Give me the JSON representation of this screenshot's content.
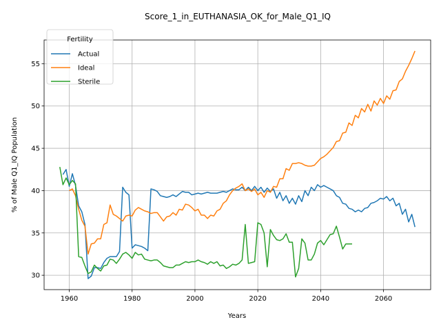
{
  "chart_data": {
    "type": "line",
    "title": "Score_1_in_EUTHANASIA_OK_for_Male_Q1_IQ",
    "xlabel": "Years",
    "ylabel": "% of Male Q1_IQ Population",
    "xlim": [
      1952,
      2075
    ],
    "ylim": [
      28.3,
      57.8
    ],
    "xticks": [
      1960,
      1980,
      2000,
      2020,
      2040,
      2060
    ],
    "yticks": [
      30,
      35,
      40,
      45,
      50,
      55
    ],
    "grid": true,
    "legend": {
      "title": "Fertility",
      "position": "top-left"
    },
    "series": [
      {
        "name": "Actual",
        "color": "#1f77b4",
        "points": [
          [
            1958,
            41.9
          ],
          [
            1959,
            42.5
          ],
          [
            1960,
            40.5
          ],
          [
            1961,
            42.0
          ],
          [
            1962,
            40.6
          ],
          [
            1963,
            38.2
          ],
          [
            1964,
            37.5
          ],
          [
            1965,
            36.0
          ],
          [
            1966,
            29.6
          ],
          [
            1967,
            29.9
          ],
          [
            1968,
            30.9
          ],
          [
            1969,
            30.9
          ],
          [
            1970,
            30.8
          ],
          [
            1971,
            31.5
          ],
          [
            1972,
            32.0
          ],
          [
            1973,
            32.2
          ],
          [
            1974,
            32.2
          ],
          [
            1975,
            32.2
          ],
          [
            1976,
            32.8
          ],
          [
            1977,
            40.4
          ],
          [
            1978,
            39.8
          ],
          [
            1979,
            39.5
          ],
          [
            1980,
            33.2
          ],
          [
            1981,
            33.6
          ],
          [
            1982,
            33.5
          ],
          [
            1983,
            33.4
          ],
          [
            1984,
            33.2
          ],
          [
            1985,
            32.9
          ],
          [
            1986,
            40.2
          ],
          [
            1987,
            40.1
          ],
          [
            1988,
            39.9
          ],
          [
            1989,
            39.4
          ],
          [
            1990,
            39.3
          ],
          [
            1991,
            39.2
          ],
          [
            1992,
            39.3
          ],
          [
            1993,
            39.5
          ],
          [
            1994,
            39.3
          ],
          [
            1995,
            39.6
          ],
          [
            1996,
            39.9
          ],
          [
            1997,
            39.8
          ],
          [
            1998,
            39.8
          ],
          [
            1999,
            39.5
          ],
          [
            2000,
            39.6
          ],
          [
            2001,
            39.7
          ],
          [
            2002,
            39.6
          ],
          [
            2003,
            39.7
          ],
          [
            2004,
            39.8
          ],
          [
            2005,
            39.7
          ],
          [
            2006,
            39.7
          ],
          [
            2007,
            39.7
          ],
          [
            2008,
            39.8
          ],
          [
            2009,
            39.9
          ],
          [
            2010,
            39.8
          ],
          [
            2011,
            40.0
          ],
          [
            2012,
            40.2
          ],
          [
            2013,
            40.1
          ],
          [
            2014,
            40.1
          ],
          [
            2015,
            40.4
          ],
          [
            2016,
            40.0
          ],
          [
            2017,
            40.4
          ],
          [
            2018,
            40.0
          ],
          [
            2019,
            40.5
          ],
          [
            2020,
            40.0
          ],
          [
            2021,
            40.4
          ],
          [
            2022,
            39.8
          ],
          [
            2023,
            40.3
          ],
          [
            2024,
            39.9
          ],
          [
            2025,
            40.2
          ],
          [
            2026,
            39.1
          ],
          [
            2027,
            39.8
          ],
          [
            2028,
            38.8
          ],
          [
            2029,
            39.4
          ],
          [
            2030,
            38.5
          ],
          [
            2031,
            39.1
          ],
          [
            2032,
            38.4
          ],
          [
            2033,
            39.4
          ],
          [
            2034,
            38.7
          ],
          [
            2035,
            40.0
          ],
          [
            2036,
            39.4
          ],
          [
            2037,
            40.4
          ],
          [
            2038,
            40.0
          ],
          [
            2039,
            40.7
          ],
          [
            2040,
            40.4
          ],
          [
            2041,
            40.6
          ],
          [
            2042,
            40.4
          ],
          [
            2043,
            40.2
          ],
          [
            2044,
            40.0
          ],
          [
            2045,
            39.4
          ],
          [
            2046,
            39.2
          ],
          [
            2047,
            38.5
          ],
          [
            2048,
            38.4
          ],
          [
            2049,
            37.9
          ],
          [
            2050,
            37.8
          ],
          [
            2051,
            37.5
          ],
          [
            2052,
            37.7
          ],
          [
            2053,
            37.5
          ],
          [
            2054,
            37.9
          ],
          [
            2055,
            38.0
          ],
          [
            2056,
            38.5
          ],
          [
            2057,
            38.6
          ],
          [
            2058,
            38.8
          ],
          [
            2059,
            39.1
          ],
          [
            2060,
            39.0
          ],
          [
            2061,
            39.3
          ],
          [
            2062,
            38.8
          ],
          [
            2063,
            39.1
          ],
          [
            2064,
            38.2
          ],
          [
            2065,
            38.5
          ],
          [
            2066,
            37.2
          ],
          [
            2067,
            37.8
          ],
          [
            2068,
            36.3
          ],
          [
            2069,
            37.2
          ],
          [
            2070,
            35.7
          ]
        ]
      },
      {
        "name": "Ideal",
        "color": "#ff7f0e",
        "points": [
          [
            1960,
            40.0
          ],
          [
            1961,
            40.2
          ],
          [
            1962,
            39.4
          ],
          [
            1963,
            37.8
          ],
          [
            1964,
            36.5
          ],
          [
            1965,
            35.8
          ],
          [
            1966,
            32.5
          ],
          [
            1967,
            33.7
          ],
          [
            1968,
            33.8
          ],
          [
            1969,
            34.3
          ],
          [
            1970,
            34.3
          ],
          [
            1971,
            36.0
          ],
          [
            1972,
            36.2
          ],
          [
            1973,
            38.3
          ],
          [
            1974,
            37.2
          ],
          [
            1975,
            37.0
          ],
          [
            1976,
            36.7
          ],
          [
            1977,
            36.4
          ],
          [
            1978,
            37.0
          ],
          [
            1979,
            37.1
          ],
          [
            1980,
            37.0
          ],
          [
            1981,
            37.7
          ],
          [
            1982,
            38.0
          ],
          [
            1983,
            37.8
          ],
          [
            1984,
            37.6
          ],
          [
            1985,
            37.5
          ],
          [
            1986,
            37.3
          ],
          [
            1987,
            37.4
          ],
          [
            1988,
            37.4
          ],
          [
            1989,
            36.9
          ],
          [
            1990,
            36.4
          ],
          [
            1991,
            36.9
          ],
          [
            1992,
            37.0
          ],
          [
            1993,
            37.4
          ],
          [
            1994,
            37.1
          ],
          [
            1995,
            37.8
          ],
          [
            1996,
            37.7
          ],
          [
            1997,
            38.4
          ],
          [
            1998,
            38.3
          ],
          [
            1999,
            38.0
          ],
          [
            2000,
            37.6
          ],
          [
            2001,
            37.8
          ],
          [
            2002,
            37.1
          ],
          [
            2003,
            37.1
          ],
          [
            2004,
            36.7
          ],
          [
            2005,
            37.1
          ],
          [
            2006,
            37.0
          ],
          [
            2007,
            37.6
          ],
          [
            2008,
            37.8
          ],
          [
            2009,
            38.5
          ],
          [
            2010,
            38.8
          ],
          [
            2011,
            39.5
          ],
          [
            2012,
            40.0
          ],
          [
            2013,
            40.3
          ],
          [
            2014,
            40.5
          ],
          [
            2015,
            40.8
          ],
          [
            2016,
            40.0
          ],
          [
            2017,
            40.2
          ],
          [
            2018,
            39.9
          ],
          [
            2019,
            40.2
          ],
          [
            2020,
            39.5
          ],
          [
            2021,
            39.8
          ],
          [
            2022,
            39.2
          ],
          [
            2023,
            40.0
          ],
          [
            2024,
            39.8
          ],
          [
            2025,
            40.5
          ],
          [
            2026,
            40.4
          ],
          [
            2027,
            41.4
          ],
          [
            2028,
            41.4
          ],
          [
            2029,
            42.6
          ],
          [
            2030,
            42.4
          ],
          [
            2031,
            43.2
          ],
          [
            2032,
            43.2
          ],
          [
            2033,
            43.3
          ],
          [
            2034,
            43.2
          ],
          [
            2035,
            43.0
          ],
          [
            2036,
            42.9
          ],
          [
            2037,
            42.9
          ],
          [
            2038,
            43.0
          ],
          [
            2039,
            43.4
          ],
          [
            2040,
            43.8
          ],
          [
            2041,
            44.0
          ],
          [
            2042,
            44.3
          ],
          [
            2043,
            44.7
          ],
          [
            2044,
            45.1
          ],
          [
            2045,
            45.8
          ],
          [
            2046,
            45.9
          ],
          [
            2047,
            46.8
          ],
          [
            2048,
            46.9
          ],
          [
            2049,
            48.0
          ],
          [
            2050,
            47.7
          ],
          [
            2051,
            48.9
          ],
          [
            2052,
            48.6
          ],
          [
            2053,
            49.7
          ],
          [
            2054,
            49.3
          ],
          [
            2055,
            50.2
          ],
          [
            2056,
            49.4
          ],
          [
            2057,
            50.6
          ],
          [
            2058,
            50.1
          ],
          [
            2059,
            50.9
          ],
          [
            2060,
            50.3
          ],
          [
            2061,
            51.2
          ],
          [
            2062,
            50.8
          ],
          [
            2063,
            51.8
          ],
          [
            2064,
            51.9
          ],
          [
            2065,
            52.9
          ],
          [
            2066,
            53.2
          ],
          [
            2067,
            54.1
          ],
          [
            2068,
            54.8
          ],
          [
            2069,
            55.6
          ],
          [
            2070,
            56.5
          ]
        ]
      },
      {
        "name": "Sterile",
        "color": "#2ca02c",
        "points": [
          [
            1957,
            42.8
          ],
          [
            1958,
            40.7
          ],
          [
            1959,
            41.5
          ],
          [
            1960,
            40.7
          ],
          [
            1961,
            41.2
          ],
          [
            1962,
            40.8
          ],
          [
            1963,
            32.2
          ],
          [
            1964,
            32.1
          ],
          [
            1965,
            31.1
          ],
          [
            1966,
            30.2
          ],
          [
            1967,
            30.4
          ],
          [
            1968,
            31.2
          ],
          [
            1969,
            30.8
          ],
          [
            1970,
            30.5
          ],
          [
            1971,
            31.1
          ],
          [
            1972,
            31.2
          ],
          [
            1973,
            31.9
          ],
          [
            1974,
            31.8
          ],
          [
            1975,
            31.4
          ],
          [
            1976,
            31.9
          ],
          [
            1977,
            32.5
          ],
          [
            1978,
            32.7
          ],
          [
            1979,
            32.4
          ],
          [
            1980,
            32.0
          ],
          [
            1981,
            32.7
          ],
          [
            1982,
            32.4
          ],
          [
            1983,
            32.5
          ],
          [
            1984,
            31.9
          ],
          [
            1985,
            31.8
          ],
          [
            1986,
            31.7
          ],
          [
            1987,
            31.8
          ],
          [
            1988,
            31.8
          ],
          [
            1989,
            31.5
          ],
          [
            1990,
            31.1
          ],
          [
            1991,
            31.0
          ],
          [
            1992,
            30.9
          ],
          [
            1993,
            30.9
          ],
          [
            1994,
            31.2
          ],
          [
            1995,
            31.2
          ],
          [
            1996,
            31.4
          ],
          [
            1997,
            31.6
          ],
          [
            1998,
            31.5
          ],
          [
            1999,
            31.6
          ],
          [
            2000,
            31.6
          ],
          [
            2001,
            31.8
          ],
          [
            2002,
            31.6
          ],
          [
            2003,
            31.5
          ],
          [
            2004,
            31.3
          ],
          [
            2005,
            31.6
          ],
          [
            2006,
            31.4
          ],
          [
            2007,
            31.6
          ],
          [
            2008,
            31.1
          ],
          [
            2009,
            31.2
          ],
          [
            2010,
            30.8
          ],
          [
            2011,
            31.0
          ],
          [
            2012,
            31.3
          ],
          [
            2013,
            31.2
          ],
          [
            2014,
            31.4
          ],
          [
            2015,
            31.8
          ],
          [
            2016,
            36.0
          ],
          [
            2017,
            31.4
          ],
          [
            2018,
            31.5
          ],
          [
            2019,
            31.6
          ],
          [
            2020,
            36.2
          ],
          [
            2021,
            36.0
          ],
          [
            2022,
            35.0
          ],
          [
            2023,
            31.0
          ],
          [
            2024,
            35.4
          ],
          [
            2025,
            34.7
          ],
          [
            2026,
            34.2
          ],
          [
            2027,
            34.1
          ],
          [
            2028,
            34.3
          ],
          [
            2029,
            34.9
          ],
          [
            2030,
            33.9
          ],
          [
            2031,
            33.9
          ],
          [
            2032,
            29.8
          ],
          [
            2033,
            30.8
          ],
          [
            2034,
            34.3
          ],
          [
            2035,
            33.8
          ],
          [
            2036,
            31.8
          ],
          [
            2037,
            31.8
          ],
          [
            2038,
            32.5
          ],
          [
            2039,
            33.8
          ],
          [
            2040,
            34.1
          ],
          [
            2041,
            33.6
          ],
          [
            2042,
            34.2
          ],
          [
            2043,
            34.8
          ],
          [
            2044,
            34.9
          ],
          [
            2045,
            35.8
          ],
          [
            2046,
            34.5
          ],
          [
            2047,
            33.1
          ],
          [
            2048,
            33.7
          ],
          [
            2049,
            33.7
          ],
          [
            2050,
            33.7
          ]
        ]
      }
    ]
  }
}
